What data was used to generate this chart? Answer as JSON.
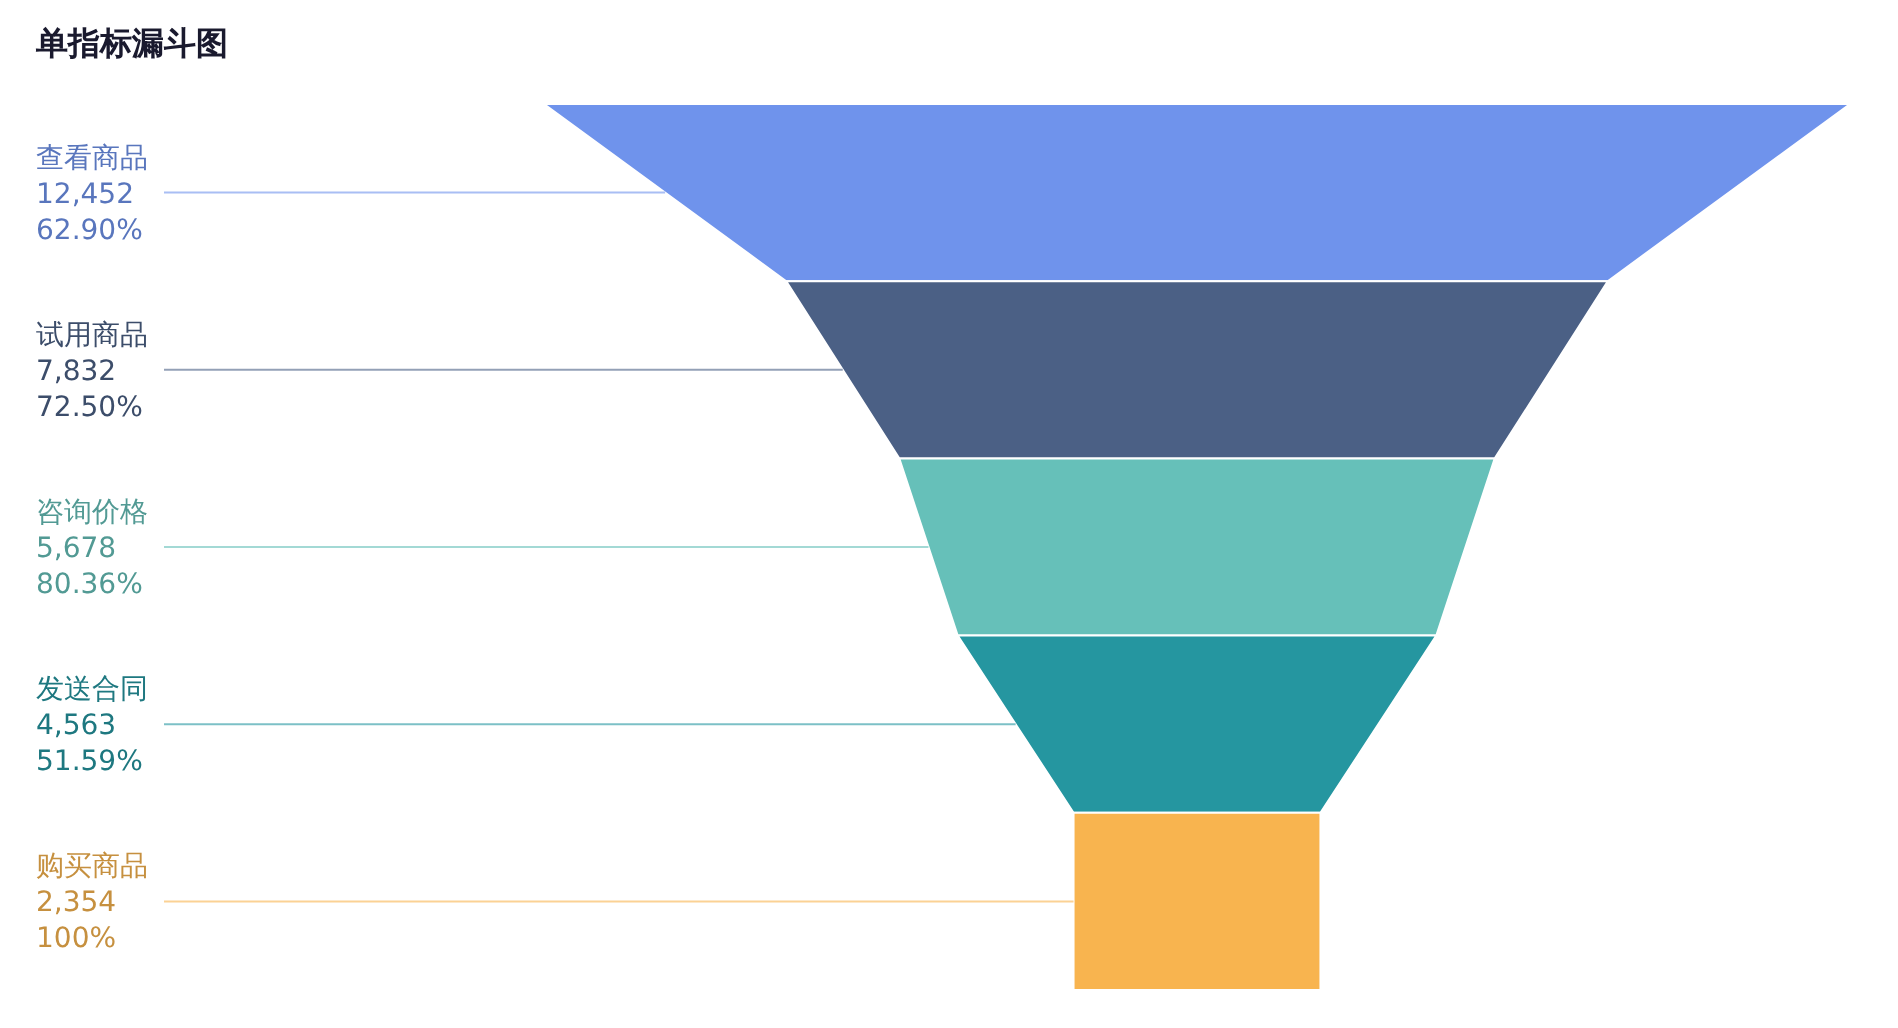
{
  "chart_data": {
    "type": "other",
    "title": "单指标漏斗图",
    "categories": [
      "查看商品",
      "试用商品",
      "咨询价格",
      "发送合同",
      "购买商品"
    ],
    "values": [
      12452,
      7832,
      5678,
      4563,
      2354
    ],
    "value_labels": [
      "12,452",
      "7,832",
      "5,678",
      "4,563",
      "2,354"
    ],
    "annotations": [
      "62.90%",
      "72.50%",
      "80.36%",
      "51.59%",
      "100%"
    ],
    "colors": [
      "#6f93ec",
      "#4b6085",
      "#66c0b9",
      "#2596a0",
      "#f8b44f"
    ]
  }
}
